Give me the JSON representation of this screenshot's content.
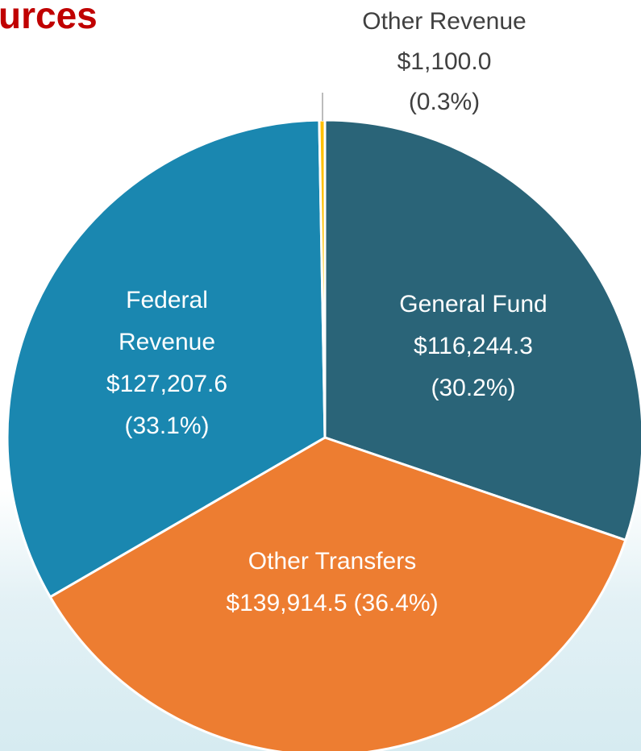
{
  "chart_data": {
    "type": "pie",
    "title": "urces",
    "categories": [
      "General Fund",
      "Other Transfers",
      "Federal Revenue",
      "Other Revenue"
    ],
    "values": [
      116244.3,
      139914.5,
      127207.6,
      1100.0
    ],
    "value_labels": [
      "$116,244.3",
      "$139,914.5",
      "$127,207.6",
      "$1,100.0"
    ],
    "percent_labels": [
      "(30.2%)",
      "(36.4%)",
      "(33.1%)",
      "(0.3%)"
    ],
    "colors": [
      "#2a6478",
      "#ed7d31",
      "#1a87b0",
      "#ffc000"
    ]
  }
}
